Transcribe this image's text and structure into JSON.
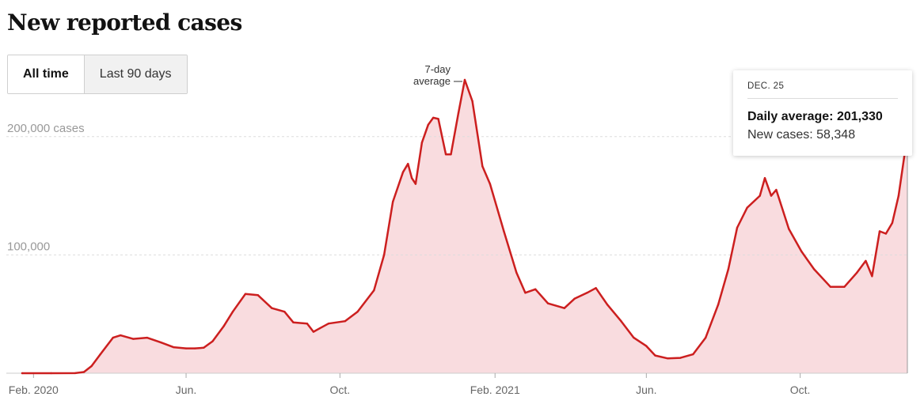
{
  "title": "New reported cases",
  "toggle": {
    "all_time": "All time",
    "last_90": "Last 90 days"
  },
  "tooltip": {
    "date": "DEC. 25",
    "avg_label": "Daily average:",
    "avg_value": "201,330",
    "new_label": "New cases:",
    "new_value": "58,348"
  },
  "colors": {
    "line": "#cc1f1f",
    "fill": "#f9dcdf",
    "grid": "#dddddd",
    "axis": "#999999",
    "bars": "#f3c6cb"
  },
  "chart_data": {
    "type": "area",
    "title": "New reported cases",
    "series": [
      {
        "name": "7-day average",
        "points": [
          [
            "2020-01-23",
            0
          ],
          [
            "2020-02-15",
            0
          ],
          [
            "2020-03-05",
            50
          ],
          [
            "2020-03-12",
            1000
          ],
          [
            "2020-03-18",
            6000
          ],
          [
            "2020-03-25",
            16000
          ],
          [
            "2020-04-04",
            30000
          ],
          [
            "2020-04-10",
            32000
          ],
          [
            "2020-04-20",
            29000
          ],
          [
            "2020-05-01",
            30000
          ],
          [
            "2020-05-12",
            26000
          ],
          [
            "2020-05-22",
            22000
          ],
          [
            "2020-06-01",
            21000
          ],
          [
            "2020-06-08",
            21000
          ],
          [
            "2020-06-15",
            21500
          ],
          [
            "2020-06-22",
            27000
          ],
          [
            "2020-07-01",
            40000
          ],
          [
            "2020-07-08",
            52000
          ],
          [
            "2020-07-18",
            67000
          ],
          [
            "2020-07-28",
            66000
          ],
          [
            "2020-08-08",
            55000
          ],
          [
            "2020-08-18",
            52000
          ],
          [
            "2020-08-25",
            43000
          ],
          [
            "2020-09-05",
            42000
          ],
          [
            "2020-09-10",
            35000
          ],
          [
            "2020-09-15",
            38000
          ],
          [
            "2020-09-22",
            42000
          ],
          [
            "2020-10-05",
            44000
          ],
          [
            "2020-10-15",
            52000
          ],
          [
            "2020-10-28",
            70000
          ],
          [
            "2020-11-05",
            100000
          ],
          [
            "2020-11-12",
            145000
          ],
          [
            "2020-11-20",
            170000
          ],
          [
            "2020-11-24",
            177000
          ],
          [
            "2020-11-27",
            165000
          ],
          [
            "2020-11-30",
            160000
          ],
          [
            "2020-12-05",
            195000
          ],
          [
            "2020-12-10",
            210000
          ],
          [
            "2020-12-14",
            216000
          ],
          [
            "2020-12-18",
            215000
          ],
          [
            "2020-12-24",
            185000
          ],
          [
            "2020-12-28",
            185000
          ],
          [
            "2021-01-03",
            220000
          ],
          [
            "2021-01-08",
            248000
          ],
          [
            "2021-01-14",
            230000
          ],
          [
            "2021-01-22",
            175000
          ],
          [
            "2021-01-28",
            160000
          ],
          [
            "2021-02-08",
            120000
          ],
          [
            "2021-02-18",
            85000
          ],
          [
            "2021-02-25",
            68000
          ],
          [
            "2021-03-05",
            71000
          ],
          [
            "2021-03-15",
            59000
          ],
          [
            "2021-03-28",
            55000
          ],
          [
            "2021-04-05",
            63000
          ],
          [
            "2021-04-15",
            68000
          ],
          [
            "2021-04-22",
            72000
          ],
          [
            "2021-05-01",
            58000
          ],
          [
            "2021-05-12",
            44000
          ],
          [
            "2021-05-22",
            30000
          ],
          [
            "2021-06-01",
            23000
          ],
          [
            "2021-06-08",
            15000
          ],
          [
            "2021-06-18",
            12500
          ],
          [
            "2021-06-28",
            13000
          ],
          [
            "2021-07-08",
            16000
          ],
          [
            "2021-07-18",
            30000
          ],
          [
            "2021-07-28",
            58000
          ],
          [
            "2021-08-05",
            88000
          ],
          [
            "2021-08-12",
            123000
          ],
          [
            "2021-08-20",
            140000
          ],
          [
            "2021-08-30",
            150000
          ],
          [
            "2021-09-03",
            165000
          ],
          [
            "2021-09-08",
            150000
          ],
          [
            "2021-09-12",
            155000
          ],
          [
            "2021-09-22",
            122000
          ],
          [
            "2021-10-02",
            103000
          ],
          [
            "2021-10-12",
            88000
          ],
          [
            "2021-10-25",
            73000
          ],
          [
            "2021-11-05",
            73000
          ],
          [
            "2021-11-15",
            85000
          ],
          [
            "2021-11-22",
            95000
          ],
          [
            "2021-11-27",
            82000
          ],
          [
            "2021-12-03",
            120000
          ],
          [
            "2021-12-08",
            118000
          ],
          [
            "2021-12-13",
            127000
          ],
          [
            "2021-12-18",
            150000
          ],
          [
            "2021-12-25",
            201330
          ]
        ]
      }
    ],
    "y_ticks": [
      {
        "value": 100000,
        "label": "100,000"
      },
      {
        "value": 200000,
        "label": "200,000 cases"
      }
    ],
    "x_ticks": [
      {
        "date": "2020-02-01",
        "label": "Feb. 2020"
      },
      {
        "date": "2020-06-01",
        "label": "Jun."
      },
      {
        "date": "2020-10-01",
        "label": "Oct."
      },
      {
        "date": "2021-02-01",
        "label": "Feb. 2021"
      },
      {
        "date": "2021-06-01",
        "label": "Jun."
      },
      {
        "date": "2021-10-01",
        "label": "Oct."
      }
    ],
    "annotation": {
      "date": "2021-01-08",
      "lines": [
        "7-day",
        "average"
      ]
    },
    "highlight": {
      "date": "2021-12-25",
      "value": 201330
    },
    "xlim": [
      "2020-01-23",
      "2021-12-25"
    ],
    "ylim": [
      0,
      250000
    ]
  }
}
